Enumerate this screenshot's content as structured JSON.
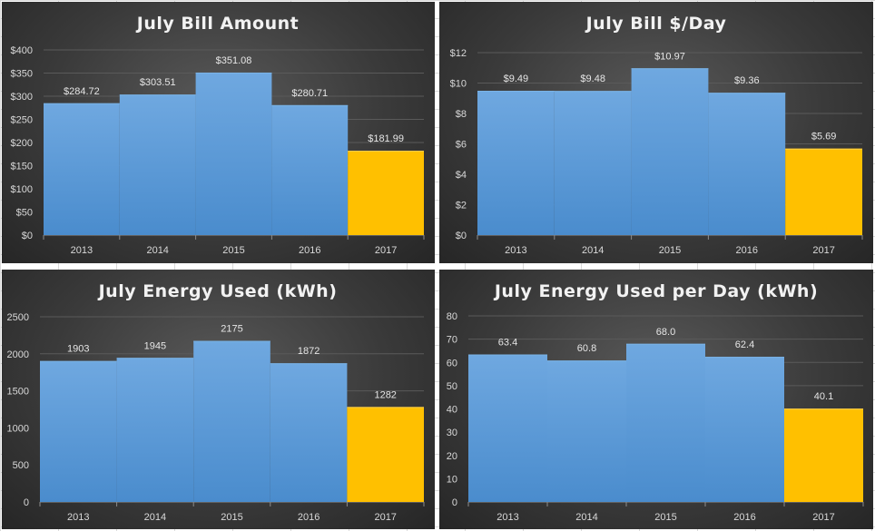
{
  "colors": {
    "bar": "#5b9bd5",
    "bar_highlight": "#ffc000",
    "grid": "#5a5a5a",
    "axis": "#8c8c8c"
  },
  "chart_data": [
    {
      "type": "bar",
      "title": "July Bill Amount",
      "categories": [
        "2013",
        "2014",
        "2015",
        "2016",
        "2017"
      ],
      "values": [
        284.72,
        303.51,
        351.08,
        280.71,
        181.99
      ],
      "value_labels": [
        "$284.72",
        "$303.51",
        "$351.08",
        "$280.71",
        "$181.99"
      ],
      "highlight_index": 4,
      "ylim": [
        0,
        400
      ],
      "yticks": [
        0,
        50,
        100,
        150,
        200,
        250,
        300,
        350,
        400
      ],
      "ytick_labels": [
        "$0",
        "$50",
        "$100",
        "$150",
        "$200",
        "$250",
        "$300",
        "$350",
        "$400"
      ],
      "grid": true,
      "xlabel": "",
      "ylabel": ""
    },
    {
      "type": "bar",
      "title": "July Bill $/Day",
      "categories": [
        "2013",
        "2014",
        "2015",
        "2016",
        "2017"
      ],
      "values": [
        9.49,
        9.48,
        10.97,
        9.36,
        5.69
      ],
      "value_labels": [
        "$9.49",
        "$9.48",
        "$10.97",
        "$9.36",
        "$5.69"
      ],
      "highlight_index": 4,
      "ylim": [
        0,
        12
      ],
      "yticks": [
        0,
        2,
        4,
        6,
        8,
        10,
        12
      ],
      "ytick_labels": [
        "$0",
        "$2",
        "$4",
        "$6",
        "$8",
        "$10",
        "$12"
      ],
      "grid": true,
      "xlabel": "",
      "ylabel": ""
    },
    {
      "type": "bar",
      "title": "July Energy Used (kWh)",
      "categories": [
        "2013",
        "2014",
        "2015",
        "2016",
        "2017"
      ],
      "values": [
        1903,
        1945,
        2175,
        1872,
        1282
      ],
      "value_labels": [
        "1903",
        "1945",
        "2175",
        "1872",
        "1282"
      ],
      "highlight_index": 4,
      "ylim": [
        0,
        2500
      ],
      "yticks": [
        0,
        500,
        1000,
        1500,
        2000,
        2500
      ],
      "ytick_labels": [
        "0",
        "500",
        "1000",
        "1500",
        "2000",
        "2500"
      ],
      "grid": true,
      "xlabel": "",
      "ylabel": ""
    },
    {
      "type": "bar",
      "title": "July Energy Used per Day (kWh)",
      "categories": [
        "2013",
        "2014",
        "2015",
        "2016",
        "2017"
      ],
      "values": [
        63.4,
        60.8,
        68.0,
        62.4,
        40.1
      ],
      "value_labels": [
        "63.4",
        "60.8",
        "68.0",
        "62.4",
        "40.1"
      ],
      "highlight_index": 4,
      "ylim": [
        0,
        80
      ],
      "yticks": [
        0,
        10,
        20,
        30,
        40,
        50,
        60,
        70,
        80
      ],
      "ytick_labels": [
        "0",
        "10",
        "20",
        "30",
        "40",
        "50",
        "60",
        "70",
        "80"
      ],
      "grid": true,
      "xlabel": "",
      "ylabel": ""
    }
  ]
}
